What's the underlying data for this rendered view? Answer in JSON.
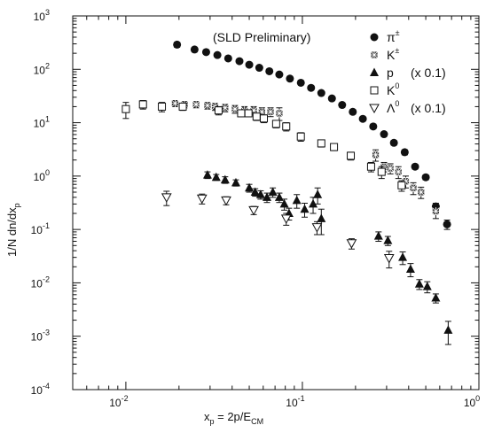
{
  "chart_data": {
    "type": "scatter",
    "annotation": "(SLD Preliminary)",
    "xlabel": {
      "main": "x",
      "sub": "p",
      "rest": " = 2p/E",
      "sub2": "CM"
    },
    "ylabel": {
      "main": "1/N dn/dx",
      "sub": "p"
    },
    "x_scale": "log",
    "y_scale": "log",
    "xlim": [
      0.005,
      1
    ],
    "ylim": [
      0.0001,
      1000
    ],
    "x_ticks": [
      {
        "value": 0.01,
        "base": "10",
        "exp": "-2"
      },
      {
        "value": 0.1,
        "base": "10",
        "exp": "-1"
      },
      {
        "value": 1,
        "base": "10",
        "exp": "0"
      }
    ],
    "y_ticks": [
      {
        "value": 1000,
        "base": "10",
        "exp": "3"
      },
      {
        "value": 100,
        "base": "10",
        "exp": "2"
      },
      {
        "value": 10,
        "base": "10",
        "exp": "1"
      },
      {
        "value": 1,
        "base": "10",
        "exp": "0"
      },
      {
        "value": 0.1,
        "base": "10",
        "exp": "-1"
      },
      {
        "value": 0.01,
        "base": "10",
        "exp": "-2"
      },
      {
        "value": 0.001,
        "base": "10",
        "exp": "-3"
      },
      {
        "value": 0.0001,
        "base": "10",
        "exp": "-4"
      }
    ],
    "legend_placement": "top-right",
    "series": [
      {
        "name": "π",
        "sup": "±",
        "note": "",
        "marker": "filled-circle",
        "points": [
          [
            0.0195,
            290,
            30
          ],
          [
            0.0245,
            235,
            22
          ],
          [
            0.0285,
            210,
            18
          ],
          [
            0.033,
            185,
            15
          ],
          [
            0.038,
            160,
            13
          ],
          [
            0.044,
            142,
            11
          ],
          [
            0.05,
            122,
            10
          ],
          [
            0.057,
            107,
            8
          ],
          [
            0.065,
            92,
            7
          ],
          [
            0.074,
            80,
            6
          ],
          [
            0.085,
            67,
            5
          ],
          [
            0.098,
            56,
            4
          ],
          [
            0.112,
            45,
            4
          ],
          [
            0.128,
            36,
            3
          ],
          [
            0.147,
            28.5,
            2.5
          ],
          [
            0.168,
            21.5,
            2
          ],
          [
            0.193,
            16,
            1.5
          ],
          [
            0.22,
            11.8,
            1
          ],
          [
            0.252,
            8.5,
            0.8
          ],
          [
            0.29,
            6.1,
            0.6
          ],
          [
            0.33,
            4.2,
            0.4
          ],
          [
            0.38,
            2.8,
            0.3
          ],
          [
            0.435,
            1.5,
            0.15
          ],
          [
            0.5,
            0.95,
            0.1
          ],
          [
            0.57,
            0.27,
            0.04
          ],
          [
            0.66,
            0.125,
            0.025
          ]
        ]
      },
      {
        "name": "K",
        "sup": "±",
        "note": "",
        "marker": "asterisk-square",
        "points": [
          [
            0.019,
            23,
            3
          ],
          [
            0.0215,
            22,
            3
          ],
          [
            0.025,
            22,
            3
          ],
          [
            0.029,
            21,
            3
          ],
          [
            0.032,
            20,
            3
          ],
          [
            0.0365,
            19,
            3
          ],
          [
            0.0415,
            18,
            3
          ],
          [
            0.047,
            17,
            3
          ],
          [
            0.053,
            17,
            3
          ],
          [
            0.059,
            16,
            3
          ],
          [
            0.066,
            16,
            3
          ],
          [
            0.074,
            15,
            4
          ],
          [
            0.26,
            2.5,
            0.6
          ],
          [
            0.29,
            1.5,
            0.3
          ],
          [
            0.315,
            1.4,
            0.3
          ],
          [
            0.35,
            1.2,
            0.3
          ],
          [
            0.385,
            0.8,
            0.2
          ],
          [
            0.425,
            0.6,
            0.15
          ],
          [
            0.47,
            0.5,
            0.12
          ],
          [
            0.57,
            0.22,
            0.06
          ]
        ]
      },
      {
        "name": "p",
        "sup": "",
        "note": "(x 0.1)",
        "marker": "filled-triangle",
        "points": [
          [
            0.029,
            1.05,
            0.15
          ],
          [
            0.0325,
            0.95,
            0.12
          ],
          [
            0.0365,
            0.85,
            0.12
          ],
          [
            0.042,
            0.75,
            0.1
          ],
          [
            0.05,
            0.6,
            0.1
          ],
          [
            0.054,
            0.5,
            0.08
          ],
          [
            0.058,
            0.45,
            0.08
          ],
          [
            0.063,
            0.4,
            0.08
          ],
          [
            0.068,
            0.5,
            0.1
          ],
          [
            0.074,
            0.4,
            0.08
          ],
          [
            0.079,
            0.3,
            0.07
          ],
          [
            0.084,
            0.2,
            0.05
          ],
          [
            0.093,
            0.35,
            0.1
          ],
          [
            0.103,
            0.24,
            0.07
          ],
          [
            0.115,
            0.3,
            0.1
          ],
          [
            0.122,
            0.45,
            0.15
          ],
          [
            0.128,
            0.16,
            0.08
          ],
          [
            0.27,
            0.075,
            0.015
          ],
          [
            0.305,
            0.062,
            0.012
          ],
          [
            0.37,
            0.03,
            0.008
          ],
          [
            0.41,
            0.018,
            0.005
          ],
          [
            0.46,
            0.0095,
            0.002
          ],
          [
            0.51,
            0.0085,
            0.002
          ],
          [
            0.57,
            0.0052,
            0.001
          ],
          [
            0.67,
            0.0013,
            0.0006
          ]
        ]
      },
      {
        "name": "K",
        "sup": "0",
        "note": "",
        "marker": "open-square",
        "points": [
          [
            0.01,
            18,
            6
          ],
          [
            0.0125,
            22,
            4
          ],
          [
            0.016,
            20,
            4
          ],
          [
            0.021,
            20,
            3
          ],
          [
            0.0335,
            17,
            3
          ],
          [
            0.045,
            15,
            2
          ],
          [
            0.0495,
            15,
            2
          ],
          [
            0.055,
            13,
            2
          ],
          [
            0.0605,
            12,
            2
          ],
          [
            0.071,
            9.5,
            1.5
          ],
          [
            0.081,
            8.5,
            1.5
          ],
          [
            0.098,
            5.5,
            1
          ],
          [
            0.128,
            4.1,
            0.6
          ],
          [
            0.151,
            3.5,
            0.5
          ],
          [
            0.188,
            2.4,
            0.4
          ],
          [
            0.245,
            1.5,
            0.3
          ],
          [
            0.281,
            1.2,
            0.3
          ],
          [
            0.365,
            0.67,
            0.15
          ]
        ]
      },
      {
        "name": "Λ",
        "sup": "0",
        "note": "(x 0.1)",
        "marker": "open-triangle-down",
        "points": [
          [
            0.017,
            0.4,
            0.12
          ],
          [
            0.027,
            0.38,
            0.08
          ],
          [
            0.037,
            0.35,
            0.06
          ],
          [
            0.053,
            0.23,
            0.04
          ],
          [
            0.081,
            0.16,
            0.04
          ],
          [
            0.121,
            0.11,
            0.03
          ],
          [
            0.19,
            0.055,
            0.012
          ],
          [
            0.31,
            0.029,
            0.01
          ]
        ]
      }
    ]
  }
}
